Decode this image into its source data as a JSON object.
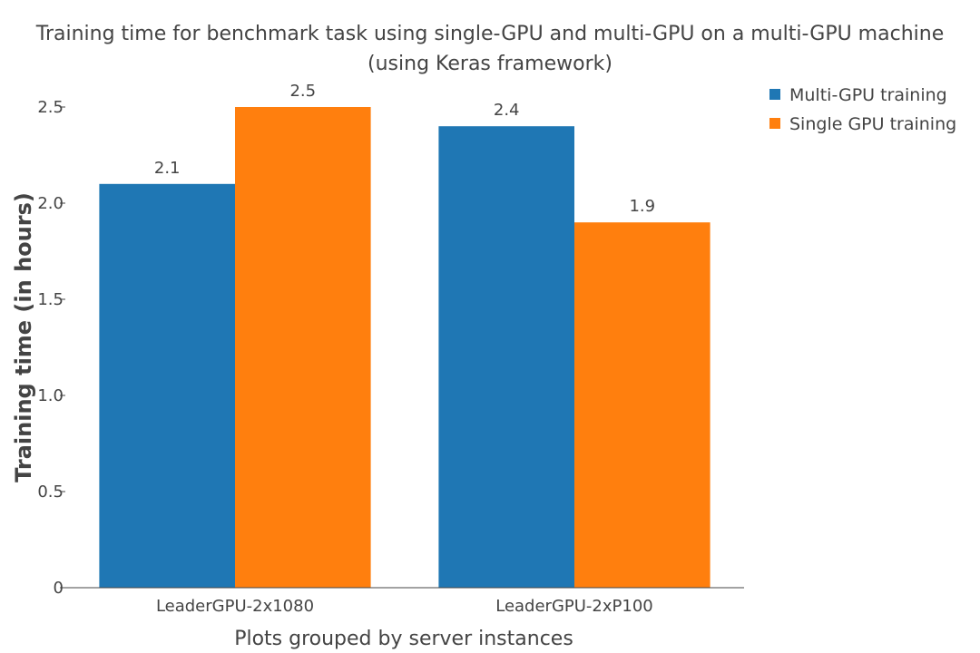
{
  "chart_data": {
    "type": "bar",
    "title_line1": "Training time for benchmark task using single-GPU and multi-GPU on a multi-GPU machine",
    "title_line2": "(using Keras framework)",
    "xlabel": "Plots grouped by server instances",
    "ylabel": "Training time (in hours)",
    "categories": [
      "LeaderGPU-2x1080",
      "LeaderGPU-2xP100"
    ],
    "series": [
      {
        "name": "Multi-GPU training",
        "values": [
          2.1,
          2.4
        ],
        "color": "#1f77b4"
      },
      {
        "name": "Single GPU training",
        "values": [
          2.5,
          1.9
        ],
        "color": "#ff7f0e"
      }
    ],
    "ylim": [
      0,
      2.5
    ],
    "yticks": [
      0,
      0.5,
      1.0,
      1.5,
      2.0,
      2.5
    ],
    "ytick_labels": [
      "0",
      "0.5",
      "1.0",
      "1.5",
      "2.0",
      "2.5"
    ],
    "legend_position": "top-right",
    "grid": false
  }
}
